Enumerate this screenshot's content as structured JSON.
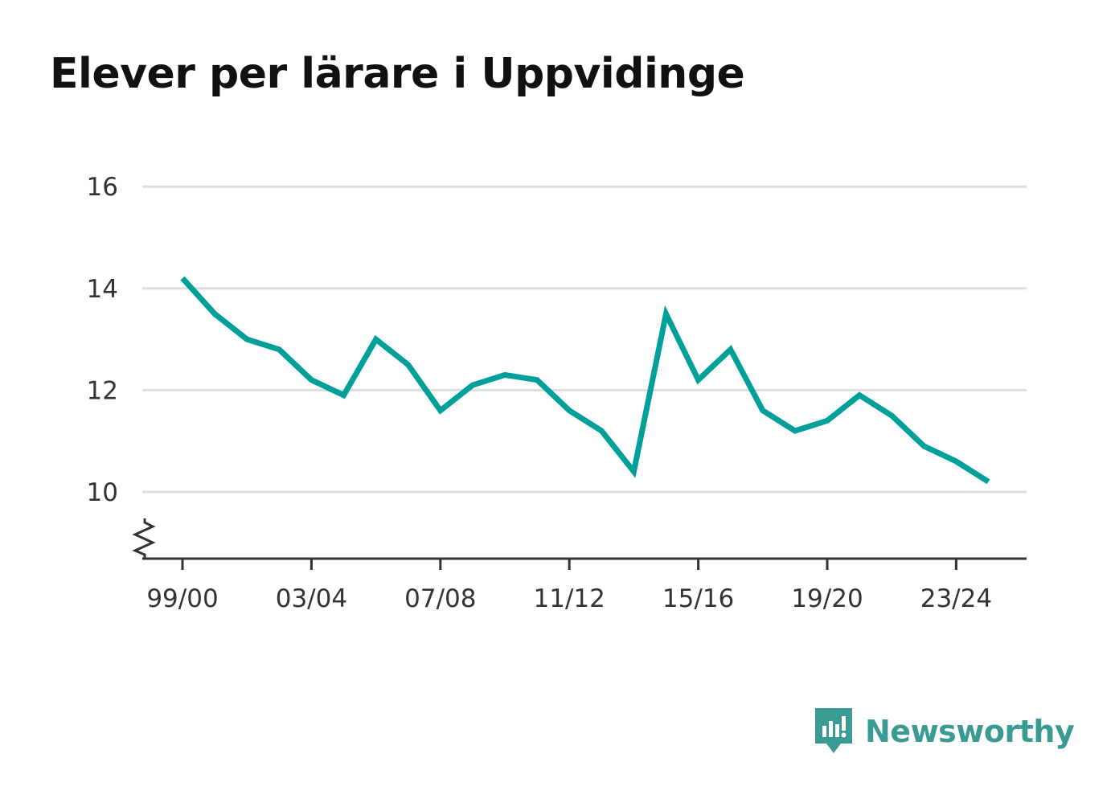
{
  "colors": {
    "line": "#00a09a",
    "grid": "#dddddd",
    "axis": "#333333",
    "title": "#111111",
    "brand": "#3a9b94"
  },
  "brand": {
    "name": "Newsworthy",
    "icon": "newsworthy-logo-icon"
  },
  "chart_data": {
    "type": "line",
    "title": "Elever per lärare i Uppvidinge",
    "xlabel": "",
    "ylabel": "",
    "ylim": [
      9.0,
      16.2
    ],
    "y_ticks": [
      10,
      12,
      14,
      16
    ],
    "y_tick_labels": [
      "10",
      "12",
      "14",
      "16"
    ],
    "y_axis_break": true,
    "grid": true,
    "legend": "none",
    "x": [
      "99/00",
      "00/01",
      "01/02",
      "02/03",
      "03/04",
      "04/05",
      "05/06",
      "06/07",
      "07/08",
      "08/09",
      "09/10",
      "10/11",
      "11/12",
      "12/13",
      "13/14",
      "14/15",
      "15/16",
      "16/17",
      "17/18",
      "18/19",
      "19/20",
      "20/21",
      "21/22",
      "22/23",
      "23/24",
      "24/25"
    ],
    "x_tick_labels": [
      "99/00",
      "03/04",
      "07/08",
      "11/12",
      "15/16",
      "19/20",
      "23/24"
    ],
    "series": [
      {
        "values": [
          14.2,
          13.5,
          13.0,
          12.8,
          12.2,
          11.9,
          13.0,
          12.5,
          11.6,
          12.1,
          12.3,
          12.2,
          11.6,
          11.2,
          10.4,
          13.5,
          12.2,
          12.8,
          11.6,
          11.2,
          11.4,
          11.9,
          11.5,
          10.9,
          10.6,
          10.2
        ]
      }
    ]
  }
}
